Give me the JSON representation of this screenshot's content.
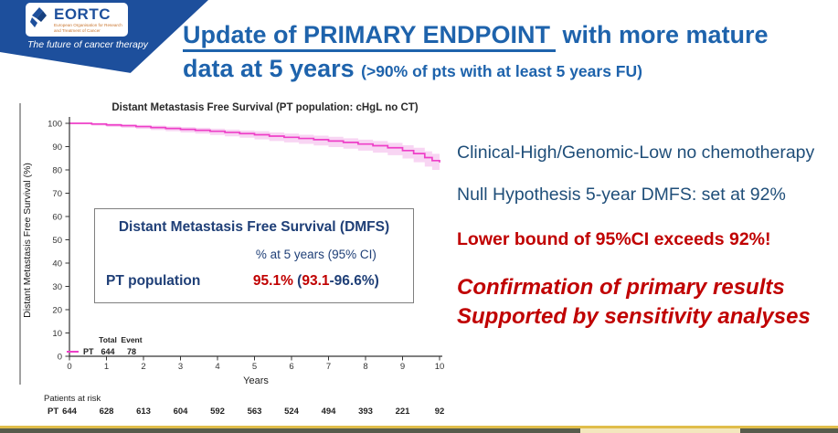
{
  "header": {
    "logo_name": "EORTC",
    "logo_subtext": "European Organisation for Research and Treatment of Cancer",
    "tagline": "The future of cancer therapy"
  },
  "title": {
    "underlined": "Update of PRIMARY ENDPOINT",
    "rest": " with more mature",
    "line2": "data at 5 years",
    "subtitle": "(>90% of pts with at least 5 years FU)"
  },
  "stats_box": {
    "title": "Distant Metastasis Free Survival (DMFS)",
    "column_header": "% at 5 years (95% CI)",
    "row_label": "PT population",
    "value_main": "95.1%",
    "value_open": " (",
    "ci_low": "93.1",
    "ci_rest": "-96.6%)"
  },
  "right_panel": {
    "line1": "Clinical-High/Genomic-Low no chemotherapy",
    "line2": "Null Hypothesis 5-year DMFS: set at 92%",
    "highlight": "Lower bound of 95%CI exceeds 92%!",
    "conclusion_line1": "Confirmation of primary results",
    "conclusion_line2": "Supported by sensitivity analyses"
  },
  "chart_data": {
    "type": "line",
    "subtype": "kaplan-meier-step",
    "title": "Distant Metastasis Free Survival (PT population: cHgL no CT)",
    "xlabel": "Years",
    "ylabel": "Distant Metastasis Free Survival (%)",
    "xlim": [
      0,
      10
    ],
    "ylim": [
      0,
      100
    ],
    "xticks": [
      0,
      1,
      2,
      3,
      4,
      5,
      6,
      7,
      8,
      9,
      10
    ],
    "yticks": [
      0,
      10,
      20,
      30,
      40,
      50,
      60,
      70,
      80,
      90,
      100
    ],
    "grid": false,
    "series": [
      {
        "name": "PT",
        "color": "#ee3fc8",
        "band_color": "#f6cbf0",
        "x": [
          0,
          0.6,
          1.0,
          1.4,
          1.8,
          2.2,
          2.6,
          3.0,
          3.4,
          3.8,
          4.2,
          4.6,
          5.0,
          5.4,
          5.8,
          6.2,
          6.6,
          7.0,
          7.4,
          7.8,
          8.2,
          8.6,
          9.0,
          9.3,
          9.6,
          9.8,
          10.0
        ],
        "y": [
          100,
          99.7,
          99.3,
          99.0,
          98.6,
          98.2,
          97.8,
          97.4,
          97.0,
          96.6,
          96.1,
          95.6,
          95.1,
          94.5,
          94.0,
          93.5,
          93.0,
          92.4,
          91.8,
          91.1,
          90.4,
          89.5,
          88.3,
          87.0,
          85.3,
          84.0,
          83.2
        ],
        "ci_upper": [
          100,
          100,
          99.8,
          99.6,
          99.3,
          99.0,
          98.7,
          98.4,
          98.1,
          97.7,
          97.3,
          96.9,
          96.6,
          96.1,
          95.6,
          95.1,
          94.7,
          94.2,
          93.6,
          93.0,
          92.4,
          91.6,
          90.6,
          89.5,
          88.0,
          86.9,
          86.2
        ],
        "ci_lower": [
          100,
          99.0,
          98.5,
          98.1,
          97.6,
          97.1,
          96.6,
          96.1,
          95.6,
          95.0,
          94.4,
          93.8,
          93.1,
          92.4,
          91.8,
          91.2,
          90.5,
          89.8,
          89.1,
          88.3,
          87.4,
          86.3,
          84.9,
          83.3,
          81.4,
          80.0,
          79.2
        ]
      }
    ],
    "legend": {
      "header_total": "Total",
      "header_event": "Event",
      "rows": [
        {
          "name": "PT",
          "total": "644",
          "event": "78"
        }
      ]
    },
    "at_risk": {
      "label": "Patients at risk",
      "rows": [
        {
          "name": "PT",
          "values": [
            "644",
            "628",
            "613",
            "604",
            "592",
            "563",
            "524",
            "494",
            "393",
            "221",
            "92"
          ]
        }
      ]
    }
  },
  "colors": {
    "banner_blue": "#1d4f9c",
    "title_blue": "#1e63ac",
    "navy": "#1f4e79",
    "red": "#c00000",
    "curve_pink": "#ee3fc8",
    "band_pink": "#f6cbf0",
    "bar_gold": "#e0bd4a",
    "bar_olive": "#575c4c",
    "bar_pale": "#f3e7bd"
  }
}
